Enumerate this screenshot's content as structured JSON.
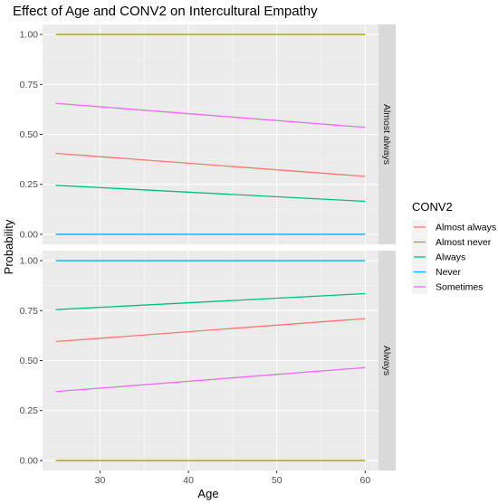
{
  "chart_data": {
    "type": "line",
    "title": "Effect of Age and CONV2 on Intercultural Empathy",
    "xlabel": "Age",
    "ylabel": "Probability",
    "xlim": [
      23.5,
      61.5
    ],
    "ylim": [
      -0.05,
      1.05
    ],
    "x_ticks": [
      30,
      40,
      50,
      60
    ],
    "y_ticks": [
      0.0,
      0.25,
      0.5,
      0.75,
      1.0
    ],
    "x_tick_labels": [
      "30",
      "40",
      "50",
      "60"
    ],
    "y_tick_labels": [
      "0.00",
      "0.25",
      "0.50",
      "0.75",
      "1.00"
    ],
    "grid": true,
    "legend": {
      "title": "CONV2",
      "position": "right",
      "entries": [
        "Almost always",
        "Almost never",
        "Always",
        "Never",
        "Sometimes"
      ]
    },
    "colors": {
      "Almost always": "#F8766D",
      "Almost never": "#A3A500",
      "Always": "#00BF7D",
      "Never": "#00B0F6",
      "Sometimes": "#E76BF3"
    },
    "panels": [
      {
        "strip": "Almost always",
        "series": [
          {
            "name": "Almost always",
            "x": [
              25,
              60
            ],
            "y": [
              0.405,
              0.29
            ]
          },
          {
            "name": "Almost never",
            "x": [
              25,
              60
            ],
            "y": [
              1.0,
              1.0
            ]
          },
          {
            "name": "Always",
            "x": [
              25,
              60
            ],
            "y": [
              0.245,
              0.165
            ]
          },
          {
            "name": "Never",
            "x": [
              25,
              60
            ],
            "y": [
              0.0,
              0.0
            ]
          },
          {
            "name": "Sometimes",
            "x": [
              25,
              60
            ],
            "y": [
              0.655,
              0.535
            ]
          }
        ]
      },
      {
        "strip": "Always",
        "series": [
          {
            "name": "Almost always",
            "x": [
              25,
              60
            ],
            "y": [
              0.595,
              0.71
            ]
          },
          {
            "name": "Almost never",
            "x": [
              25,
              60
            ],
            "y": [
              0.0,
              0.0
            ]
          },
          {
            "name": "Always",
            "x": [
              25,
              60
            ],
            "y": [
              0.755,
              0.835
            ]
          },
          {
            "name": "Never",
            "x": [
              25,
              60
            ],
            "y": [
              1.0,
              1.0
            ]
          },
          {
            "name": "Sometimes",
            "x": [
              25,
              60
            ],
            "y": [
              0.345,
              0.465
            ]
          }
        ]
      }
    ]
  }
}
